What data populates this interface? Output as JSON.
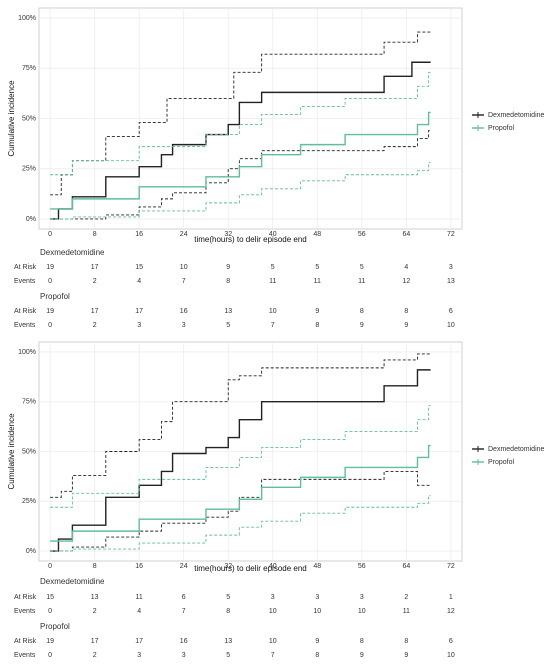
{
  "chart_data": [
    {
      "type": "step",
      "xlabel": "time(hours) to delir episode end",
      "ylabel": "Cumulative incidence",
      "xlim": [
        -2,
        74
      ],
      "ylim": [
        -5,
        105
      ],
      "xticks": [
        0,
        8,
        16,
        24,
        32,
        40,
        48,
        56,
        64,
        72
      ],
      "yticks": [
        {
          "value": 0,
          "label": "0%"
        },
        {
          "value": 25,
          "label": "25%"
        },
        {
          "value": 50,
          "label": "50%"
        },
        {
          "value": 75,
          "label": "75%"
        },
        {
          "value": 100,
          "label": "100%"
        }
      ],
      "grid": true,
      "series": [
        {
          "name": "Dexmedetomidine",
          "color": "#222222",
          "x": [
            0,
            1.5,
            4,
            10,
            16,
            20,
            22,
            28,
            32,
            34,
            38,
            60,
            65,
            68
          ],
          "values": [
            0,
            5,
            11,
            21,
            26,
            32,
            37,
            42,
            47,
            58,
            63,
            71,
            78,
            78
          ],
          "upper": {
            "x": [
              0,
              2,
              4,
              10,
              16,
              21,
              33,
              38,
              60,
              66,
              68
            ],
            "values": [
              12,
              22,
              29,
              41,
              48,
              60,
              73,
              82,
              88,
              93,
              93
            ]
          },
          "lower": {
            "x": [
              0,
              4,
              10,
              16,
              20,
              22,
              28,
              32,
              34,
              38,
              60,
              66,
              68
            ],
            "values": [
              0,
              0,
              2,
              6,
              10,
              13,
              18,
              25,
              30,
              34,
              36,
              40,
              44
            ]
          }
        },
        {
          "name": "Propofol",
          "color": "#5fbf9a",
          "x": [
            0,
            4,
            16,
            28,
            34,
            38,
            45,
            53,
            66,
            68
          ],
          "values": [
            5,
            10,
            16,
            21,
            26,
            32,
            37,
            42,
            47,
            53
          ],
          "upper": {
            "x": [
              0,
              4,
              16,
              28,
              34,
              38,
              45,
              53,
              66,
              68
            ],
            "values": [
              22,
              29,
              36,
              42,
              47,
              52,
              56,
              60,
              66,
              73
            ]
          },
          "lower": {
            "x": [
              0,
              4,
              16,
              28,
              34,
              38,
              45,
              53,
              66,
              68
            ],
            "values": [
              0,
              1,
              4,
              8,
              12,
              15,
              19,
              22,
              24,
              28
            ]
          }
        }
      ],
      "risk_table": [
        {
          "name": "Dexmedetomidine",
          "rows": [
            {
              "label": "At Risk",
              "values": [
                19,
                17,
                15,
                10,
                9,
                5,
                5,
                5,
                4,
                3
              ]
            },
            {
              "label": "Events",
              "values": [
                0,
                2,
                4,
                7,
                8,
                11,
                11,
                11,
                12,
                13
              ]
            }
          ]
        },
        {
          "name": "Propofol",
          "rows": [
            {
              "label": "At Risk",
              "values": [
                19,
                17,
                17,
                16,
                13,
                10,
                9,
                8,
                8,
                6
              ]
            },
            {
              "label": "Events",
              "values": [
                0,
                2,
                3,
                3,
                5,
                7,
                8,
                9,
                9,
                10
              ]
            }
          ]
        }
      ]
    },
    {
      "type": "step",
      "xlabel": "time(hours) to delir episode end",
      "ylabel": "Cumulative incidence",
      "xlim": [
        -2,
        74
      ],
      "ylim": [
        -5,
        105
      ],
      "xticks": [
        0,
        8,
        16,
        24,
        32,
        40,
        48,
        56,
        64,
        72
      ],
      "yticks": [
        {
          "value": 0,
          "label": "0%"
        },
        {
          "value": 25,
          "label": "25%"
        },
        {
          "value": 50,
          "label": "50%"
        },
        {
          "value": 75,
          "label": "75%"
        },
        {
          "value": 100,
          "label": "100%"
        }
      ],
      "grid": true,
      "series": [
        {
          "name": "Dexmedetomidine",
          "color": "#222222",
          "x": [
            0,
            1.5,
            4,
            10,
            16,
            20,
            22,
            28,
            32,
            34,
            38,
            60,
            66,
            68
          ],
          "values": [
            0,
            6,
            13,
            27,
            33,
            40,
            49,
            52,
            57,
            66,
            75,
            83,
            91,
            91
          ],
          "upper": {
            "x": [
              0,
              2,
              4,
              10,
              16,
              20,
              22,
              32,
              34,
              38,
              60,
              66,
              68
            ],
            "values": [
              27,
              30,
              38,
              50,
              56,
              65,
              75,
              86,
              88,
              92,
              96,
              99,
              99
            ]
          },
          "lower": {
            "x": [
              0,
              4,
              10,
              16,
              20,
              28,
              32,
              34,
              38,
              60,
              66,
              68
            ],
            "values": [
              0,
              2,
              7,
              10,
              14,
              17,
              20,
              27,
              36,
              40,
              33,
              33
            ]
          }
        },
        {
          "name": "Propofol",
          "color": "#5fbf9a",
          "x": [
            0,
            4,
            16,
            28,
            34,
            38,
            45,
            53,
            66,
            68
          ],
          "values": [
            5,
            10,
            16,
            21,
            26,
            32,
            37,
            42,
            47,
            53
          ],
          "upper": {
            "x": [
              0,
              4,
              16,
              28,
              34,
              38,
              45,
              53,
              66,
              68
            ],
            "values": [
              22,
              29,
              36,
              42,
              47,
              52,
              56,
              60,
              66,
              73
            ]
          },
          "lower": {
            "x": [
              0,
              4,
              16,
              28,
              34,
              38,
              45,
              53,
              66,
              68
            ],
            "values": [
              0,
              1,
              4,
              8,
              12,
              15,
              19,
              22,
              24,
              28
            ]
          }
        }
      ],
      "risk_table": [
        {
          "name": "Dexmedetomidine",
          "rows": [
            {
              "label": "At Risk",
              "values": [
                15,
                13,
                11,
                6,
                5,
                3,
                3,
                3,
                2,
                1
              ]
            },
            {
              "label": "Events",
              "values": [
                0,
                2,
                4,
                7,
                8,
                10,
                10,
                10,
                11,
                12
              ]
            }
          ]
        },
        {
          "name": "Propofol",
          "rows": [
            {
              "label": "At Risk",
              "values": [
                19,
                17,
                17,
                16,
                13,
                10,
                9,
                8,
                8,
                6
              ]
            },
            {
              "label": "Events",
              "values": [
                0,
                2,
                3,
                3,
                5,
                7,
                8,
                9,
                9,
                10
              ]
            }
          ]
        }
      ]
    }
  ]
}
